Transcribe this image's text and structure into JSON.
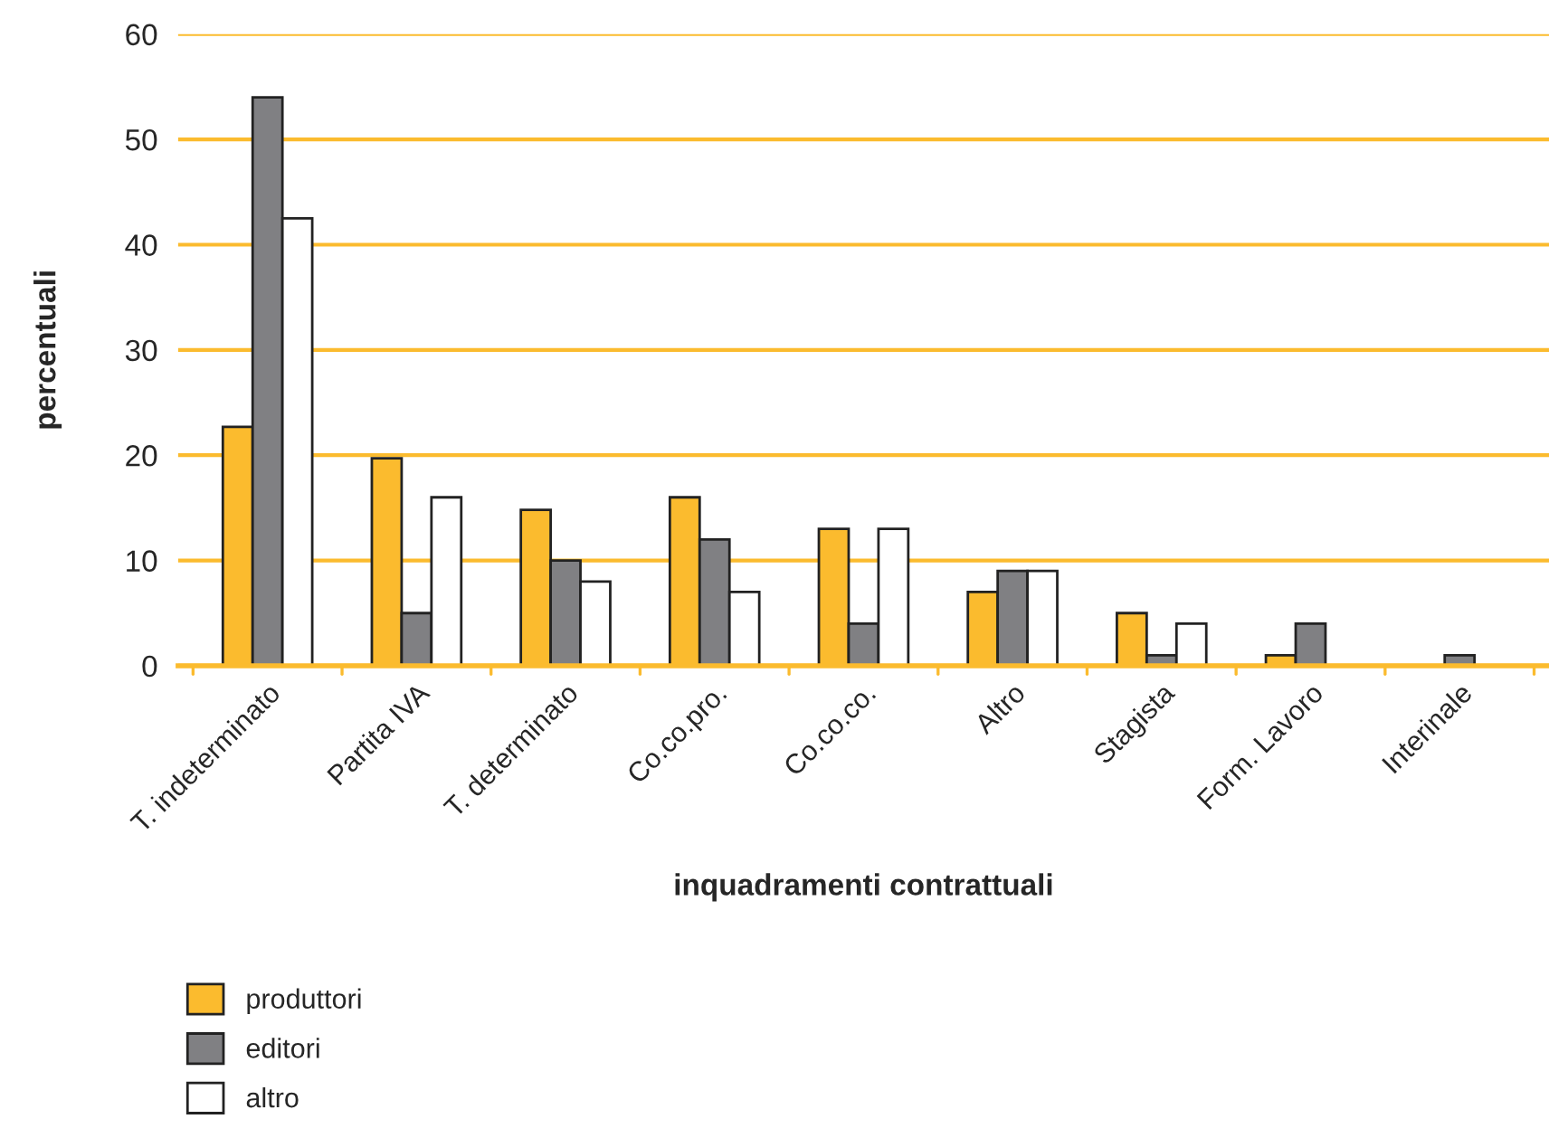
{
  "chart_data": {
    "type": "bar",
    "xlabel": "inquadramenti contrattuali",
    "ylabel": "percentuali",
    "categories": [
      "T. indeterminato",
      "Partita IVA",
      "T. determinato",
      "Co.co.pro.",
      "Co.co.co.",
      "Altro",
      "Stagista",
      "Form. Lavoro",
      "Interinale"
    ],
    "series": [
      {
        "name": "produttori",
        "color": "#fbbb2e",
        "values": [
          22.7,
          19.7,
          14.8,
          16,
          13,
          7,
          5,
          1,
          null
        ]
      },
      {
        "name": "editori",
        "color": "#808083",
        "values": [
          54,
          5,
          10,
          12,
          4,
          9,
          1,
          4,
          1
        ]
      },
      {
        "name": "altro",
        "color": "#ffffff",
        "values": [
          42.5,
          16,
          8,
          7,
          13,
          9,
          4,
          null,
          null
        ]
      }
    ],
    "ylim": [
      0,
      60
    ],
    "yticks": [
      0,
      10,
      20,
      30,
      40,
      50,
      60
    ],
    "grid": "y",
    "legend": "bottom left"
  }
}
